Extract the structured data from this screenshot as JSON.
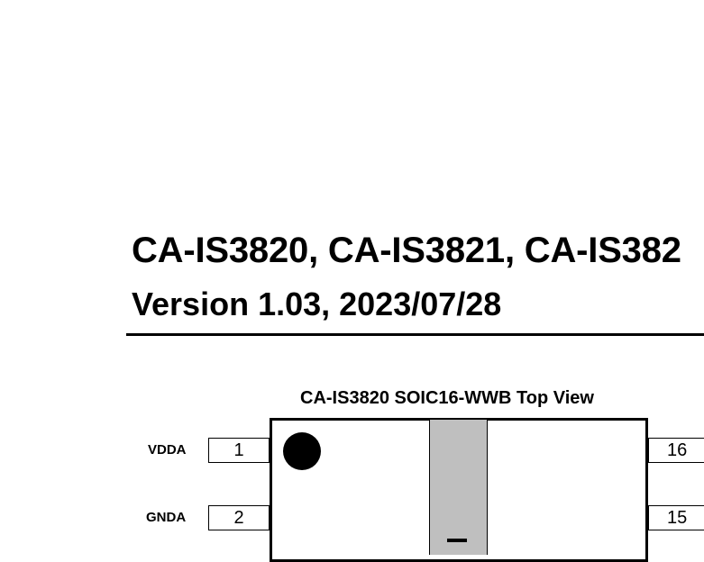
{
  "document": {
    "title": "CA-IS3820, CA-IS3821, CA-IS382",
    "version": "Version 1.03, 2023/07/28"
  },
  "diagram": {
    "view_title": "CA-IS3820 SOIC16-WWB Top View",
    "left_pins": [
      {
        "label": "VDDA",
        "number": "1"
      },
      {
        "label": "GNDA",
        "number": "2"
      }
    ],
    "right_pins": [
      {
        "number": "16"
      },
      {
        "number": "15"
      }
    ],
    "colors": {
      "isolation_barrier": "#bfbfbf",
      "outline": "#000000"
    }
  }
}
